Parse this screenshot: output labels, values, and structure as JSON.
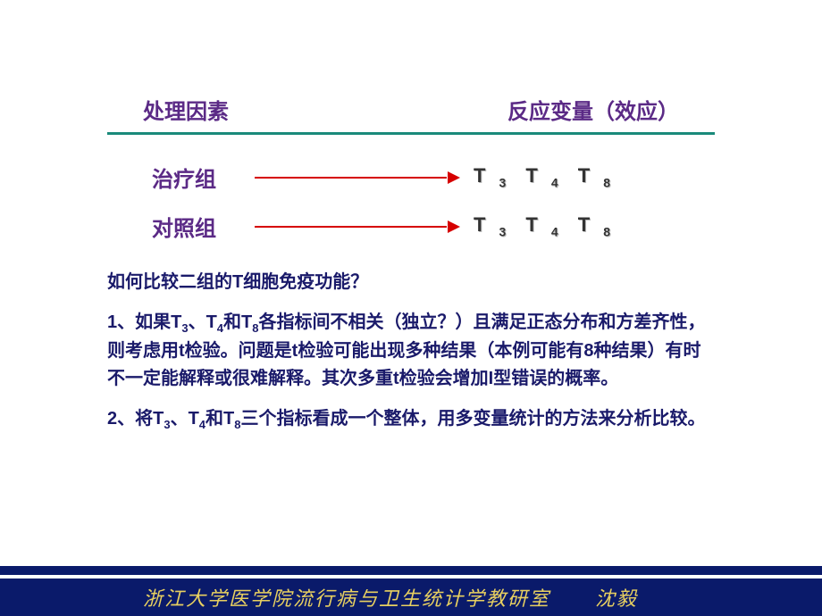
{
  "header": {
    "left": "处理因素",
    "right": "反应变量（效应）"
  },
  "diagram": {
    "rows": [
      {
        "label": "治疗组",
        "t1": "T",
        "s1": "3",
        "t2": "T",
        "s2": "4",
        "t3": "T",
        "s3": "8"
      },
      {
        "label": "对照组",
        "t1": "T",
        "s1": "3",
        "t2": "T",
        "s2": "4",
        "t3": "T",
        "s3": "8"
      }
    ]
  },
  "body": {
    "q": "如何比较二组的T细胞免疫功能？",
    "p1a": "1、如果T",
    "p1s1": "3",
    "p1b": "、T",
    "p1s2": "4",
    "p1c": "和T",
    "p1s3": "8",
    "p1d": "各指标间不相关（独立？）且满足正态分布和方差齐性，则考虑用t检验。问题是t检验可能出现多种结果（本例可能有8种结果）有时不一定能解释或很难解释。其次多重t检验会增加I型错误的概率。",
    "p2a": "2、将T",
    "p2s1": "3",
    "p2b": "、T",
    "p2s2": "4",
    "p2c": "和T",
    "p2s3": "8",
    "p2d": "三个指标看成一个整体，用多变量统计的方法来分析比较。"
  },
  "footer": {
    "dept": "浙江大学医学院流行病与卫生统计学教研室",
    "author": "沈毅"
  },
  "colors": {
    "heading": "#5b2a86",
    "divider": "#1a8a7a",
    "arrow": "#d60000",
    "body": "#1a1a6a",
    "footer_bg": "#0a1a6a",
    "footer_text": "#e8d060"
  }
}
